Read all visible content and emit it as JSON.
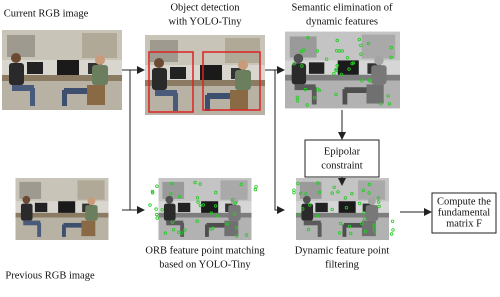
{
  "nodes": [
    {
      "lines": [
        "Current RGB image"
      ]
    },
    {
      "lines": [
        "Object detection",
        "with YOLO-Tiny"
      ]
    },
    {
      "lines": [
        "Semantic elimination of",
        "dynamic features"
      ]
    },
    {
      "lines": [
        "Epipolar",
        "constraint"
      ]
    },
    {
      "lines": [
        "Previous RGB image"
      ]
    },
    {
      "lines": [
        "ORB feature point matching",
        "based on YOLO-Tiny"
      ]
    },
    {
      "lines": [
        "Dynamic feature point",
        "filtering"
      ]
    },
    {
      "lines": [
        "Compute the",
        "fundamental",
        "matrix F"
      ]
    }
  ]
}
